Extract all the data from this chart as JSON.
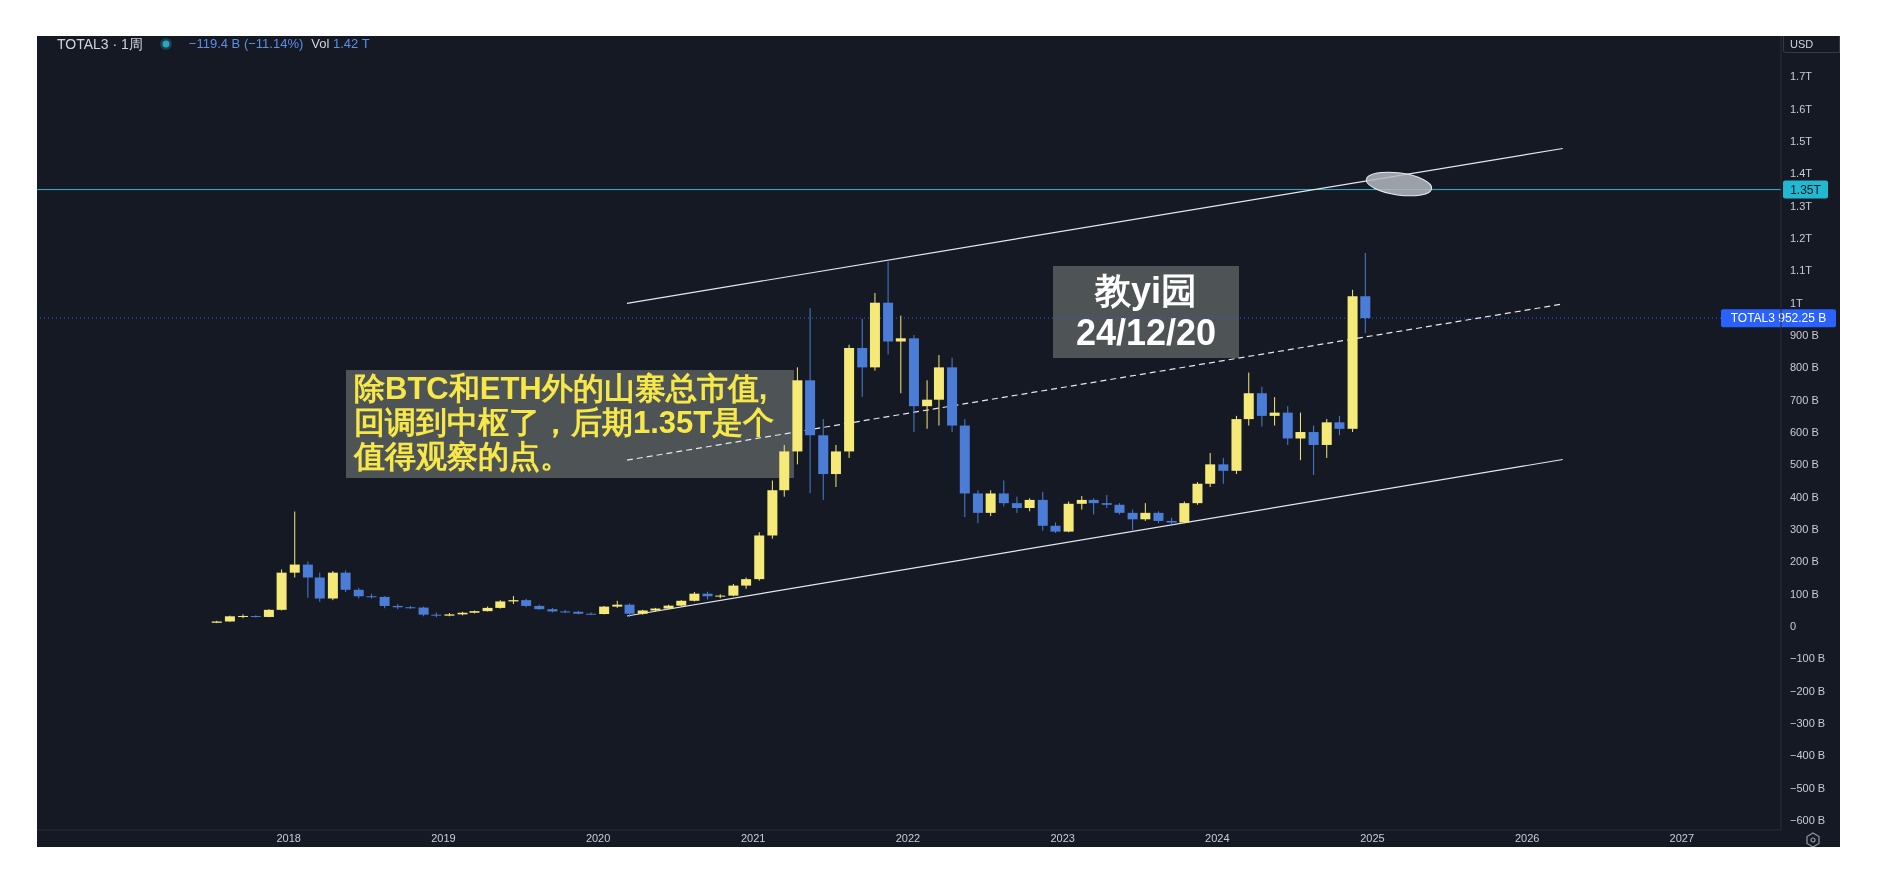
{
  "chart_data": {
    "type": "candlestick",
    "title": "TOTAL3 · 1周",
    "subtitle": "−119.4 B (−11.14%)",
    "ylabel": "USD",
    "x": [
      "2017-07-15",
      "2017-08-15",
      "2017-09-15",
      "2017-10-15",
      "2017-11-15",
      "2017-12-15",
      "2018-01-15",
      "2018-02-15",
      "2018-03-15",
      "2018-04-15",
      "2018-05-15",
      "2018-06-15",
      "2018-07-15",
      "2018-08-15",
      "2018-09-15",
      "2018-10-15",
      "2018-11-15",
      "2018-12-15",
      "2019-01-15",
      "2019-02-15",
      "2019-03-15",
      "2019-04-15",
      "2019-05-15",
      "2019-06-15",
      "2019-07-15",
      "2019-08-15",
      "2019-09-15",
      "2019-10-15",
      "2019-11-15",
      "2019-12-15",
      "2020-01-15",
      "2020-02-15",
      "2020-03-15",
      "2020-04-15",
      "2020-05-15",
      "2020-06-15",
      "2020-07-15",
      "2020-08-15",
      "2020-09-15",
      "2020-10-15",
      "2020-11-15",
      "2020-12-15",
      "2021-01-15",
      "2021-02-15",
      "2021-03-15",
      "2021-04-15",
      "2021-05-15",
      "2021-06-15",
      "2021-07-15",
      "2021-08-15",
      "2021-09-15",
      "2021-10-15",
      "2021-11-15",
      "2021-12-15",
      "2022-01-15",
      "2022-02-15",
      "2022-03-15",
      "2022-04-15",
      "2022-05-15",
      "2022-06-15",
      "2022-07-15",
      "2022-08-15",
      "2022-09-15",
      "2022-10-15",
      "2022-11-15",
      "2022-12-15",
      "2023-01-15",
      "2023-02-15",
      "2023-03-15",
      "2023-04-15",
      "2023-05-15",
      "2023-06-15",
      "2023-07-15",
      "2023-08-15",
      "2023-09-15",
      "2023-10-15",
      "2023-11-15",
      "2023-12-15",
      "2024-01-15",
      "2024-02-15",
      "2024-03-15",
      "2024-04-15",
      "2024-05-15",
      "2024-06-15",
      "2024-07-15",
      "2024-08-15",
      "2024-09-15",
      "2024-10-15",
      "2024-11-15",
      "2024-12-15"
    ],
    "ohlc": [
      [
        10000000000.0,
        16000000000.0,
        9000000000.0,
        14000000000.0
      ],
      [
        14000000000.0,
        32000000000.0,
        13000000000.0,
        30000000000.0
      ],
      [
        30000000000.0,
        36000000000.0,
        24000000000.0,
        31000000000.0
      ],
      [
        31000000000.0,
        33000000000.0,
        26000000000.0,
        28000000000.0
      ],
      [
        28000000000.0,
        52000000000.0,
        27000000000.0,
        50000000000.0
      ],
      [
        50000000000.0,
        175000000000.0,
        48000000000.0,
        165000000000.0
      ],
      [
        165000000000.0,
        354000000000.0,
        150000000000.0,
        190000000000.0
      ],
      [
        190000000000.0,
        200000000000.0,
        87000000000.0,
        150000000000.0
      ],
      [
        150000000000.0,
        165000000000.0,
        75000000000.0,
        85000000000.0
      ],
      [
        85000000000.0,
        170000000000.0,
        80000000000.0,
        165000000000.0
      ],
      [
        165000000000.0,
        172000000000.0,
        105000000000.0,
        112000000000.0
      ],
      [
        112000000000.0,
        118000000000.0,
        85000000000.0,
        92000000000.0
      ],
      [
        92000000000.0,
        100000000000.0,
        85000000000.0,
        90000000000.0
      ],
      [
        90000000000.0,
        92000000000.0,
        55000000000.0,
        62000000000.0
      ],
      [
        62000000000.0,
        68000000000.0,
        52000000000.0,
        58000000000.0
      ],
      [
        58000000000.0,
        62000000000.0,
        53000000000.0,
        57000000000.0
      ],
      [
        57000000000.0,
        60000000000.0,
        30000000000.0,
        35000000000.0
      ],
      [
        35000000000.0,
        42000000000.0,
        27000000000.0,
        32000000000.0
      ],
      [
        32000000000.0,
        40000000000.0,
        30000000000.0,
        36000000000.0
      ],
      [
        36000000000.0,
        44000000000.0,
        33000000000.0,
        41000000000.0
      ],
      [
        41000000000.0,
        48000000000.0,
        39000000000.0,
        46000000000.0
      ],
      [
        46000000000.0,
        60000000000.0,
        45000000000.0,
        56000000000.0
      ],
      [
        56000000000.0,
        80000000000.0,
        54000000000.0,
        76000000000.0
      ],
      [
        76000000000.0,
        93000000000.0,
        68000000000.0,
        80000000000.0
      ],
      [
        80000000000.0,
        84000000000.0,
        58000000000.0,
        62000000000.0
      ],
      [
        62000000000.0,
        66000000000.0,
        50000000000.0,
        52000000000.0
      ],
      [
        52000000000.0,
        56000000000.0,
        42000000000.0,
        45000000000.0
      ],
      [
        45000000000.0,
        50000000000.0,
        40000000000.0,
        44000000000.0
      ],
      [
        44000000000.0,
        47000000000.0,
        36000000000.0,
        38000000000.0
      ],
      [
        38000000000.0,
        42000000000.0,
        34000000000.0,
        37000000000.0
      ],
      [
        37000000000.0,
        62000000000.0,
        36000000000.0,
        60000000000.0
      ],
      [
        60000000000.0,
        78000000000.0,
        56000000000.0,
        66000000000.0
      ],
      [
        66000000000.0,
        70000000000.0,
        28000000000.0,
        38000000000.0
      ],
      [
        38000000000.0,
        50000000000.0,
        35000000000.0,
        48000000000.0
      ],
      [
        48000000000.0,
        56000000000.0,
        45000000000.0,
        54000000000.0
      ],
      [
        54000000000.0,
        66000000000.0,
        52000000000.0,
        63000000000.0
      ],
      [
        63000000000.0,
        80000000000.0,
        60000000000.0,
        78000000000.0
      ],
      [
        78000000000.0,
        105000000000.0,
        76000000000.0,
        100000000000.0
      ],
      [
        100000000000.0,
        106000000000.0,
        82000000000.0,
        92000000000.0
      ],
      [
        92000000000.0,
        98000000000.0,
        86000000000.0,
        94000000000.0
      ],
      [
        94000000000.0,
        130000000000.0,
        92000000000.0,
        125000000000.0
      ],
      [
        125000000000.0,
        150000000000.0,
        115000000000.0,
        145000000000.0
      ],
      [
        145000000000.0,
        290000000000.0,
        140000000000.0,
        280000000000.0
      ],
      [
        280000000000.0,
        450000000000.0,
        270000000000.0,
        420000000000.0
      ],
      [
        420000000000.0,
        560000000000.0,
        400000000000.0,
        540000000000.0
      ],
      [
        540000000000.0,
        800000000000.0,
        500000000000.0,
        760000000000.0
      ],
      [
        760000000000.0,
        983000000000.0,
        411000000000.0,
        590000000000.0
      ],
      [
        590000000000.0,
        640000000000.0,
        390000000000.0,
        470000000000.0
      ],
      [
        470000000000.0,
        560000000000.0,
        430000000000.0,
        540000000000.0
      ],
      [
        540000000000.0,
        870000000000.0,
        520000000000.0,
        860000000000.0
      ],
      [
        860000000000.0,
        950000000000.0,
        709000000000.0,
        800000000000.0
      ],
      [
        800000000000.0,
        1030000000000.0,
        790000000000.0,
        1000000000000.0
      ],
      [
        1000000000000.0,
        1127000000000.0,
        840000000000.0,
        880000000000.0
      ],
      [
        880000000000.0,
        960000000000.0,
        720000000000.0,
        890000000000.0
      ],
      [
        890000000000.0,
        900000000000.0,
        600000000000.0,
        680000000000.0
      ],
      [
        680000000000.0,
        760000000000.0,
        610000000000.0,
        700000000000.0
      ],
      [
        700000000000.0,
        838000000000.0,
        620000000000.0,
        800000000000.0
      ],
      [
        800000000000.0,
        830000000000.0,
        600000000000.0,
        620000000000.0
      ],
      [
        620000000000.0,
        640000000000.0,
        337000000000.0,
        410000000000.0
      ],
      [
        410000000000.0,
        420000000000.0,
        318000000000.0,
        350000000000.0
      ],
      [
        350000000000.0,
        420000000000.0,
        340000000000.0,
        410000000000.0
      ],
      [
        410000000000.0,
        450000000000.0,
        370000000000.0,
        380000000000.0
      ],
      [
        380000000000.0,
        400000000000.0,
        350000000000.0,
        365000000000.0
      ],
      [
        365000000000.0,
        395000000000.0,
        355000000000.0,
        390000000000.0
      ],
      [
        390000000000.0,
        415000000000.0,
        295000000000.0,
        310000000000.0
      ],
      [
        310000000000.0,
        320000000000.0,
        288000000000.0,
        292000000000.0
      ],
      [
        292000000000.0,
        385000000000.0,
        290000000000.0,
        378000000000.0
      ],
      [
        378000000000.0,
        402000000000.0,
        360000000000.0,
        390000000000.0
      ],
      [
        390000000000.0,
        395000000000.0,
        345000000000.0,
        380000000000.0
      ],
      [
        380000000000.0,
        405000000000.0,
        365000000000.0,
        375000000000.0
      ],
      [
        375000000000.0,
        380000000000.0,
        345000000000.0,
        350000000000.0
      ],
      [
        350000000000.0,
        360000000000.0,
        297000000000.0,
        330000000000.0
      ],
      [
        330000000000.0,
        380000000000.0,
        325000000000.0,
        350000000000.0
      ],
      [
        350000000000.0,
        355000000000.0,
        318000000000.0,
        325000000000.0
      ],
      [
        325000000000.0,
        335000000000.0,
        315000000000.0,
        320000000000.0
      ],
      [
        320000000000.0,
        385000000000.0,
        318000000000.0,
        380000000000.0
      ],
      [
        380000000000.0,
        445000000000.0,
        375000000000.0,
        440000000000.0
      ],
      [
        440000000000.0,
        535000000000.0,
        430000000000.0,
        500000000000.0
      ],
      [
        500000000000.0,
        520000000000.0,
        440000000000.0,
        480000000000.0
      ],
      [
        480000000000.0,
        650000000000.0,
        470000000000.0,
        640000000000.0
      ],
      [
        640000000000.0,
        784000000000.0,
        620000000000.0,
        720000000000.0
      ],
      [
        720000000000.0,
        740000000000.0,
        617000000000.0,
        650000000000.0
      ],
      [
        650000000000.0,
        708000000000.0,
        620000000000.0,
        660000000000.0
      ],
      [
        660000000000.0,
        680000000000.0,
        560000000000.0,
        580000000000.0
      ],
      [
        580000000000.0,
        660000000000.0,
        513000000000.0,
        600000000000.0
      ],
      [
        600000000000.0,
        620000000000.0,
        467000000000.0,
        560000000000.0
      ],
      [
        560000000000.0,
        640000000000.0,
        520000000000.0,
        630000000000.0
      ],
      [
        630000000000.0,
        650000000000.0,
        590000000000.0,
        610000000000.0
      ],
      [
        610000000000.0,
        1040000000000.0,
        600000000000.0,
        1020000000000.0
      ],
      [
        1020000000000.0,
        1154000000000.0,
        906000000000.0,
        952250000000.0
      ]
    ],
    "colors": [
      "#f5e978",
      "#f5e978",
      "#f5e978",
      "#4b7dd7",
      "#f5e978",
      "#f5e978",
      "#f5e978",
      "#4b7dd7",
      "#4b7dd7",
      "#f5e978",
      "#4b7dd7",
      "#4b7dd7",
      "#4b7dd7",
      "#4b7dd7",
      "#4b7dd7",
      "#4b7dd7",
      "#4b7dd7",
      "#4b7dd7",
      "#f5e978",
      "#f5e978",
      "#f5e978",
      "#f5e978",
      "#f5e978",
      "#f5e978",
      "#4b7dd7",
      "#4b7dd7",
      "#4b7dd7",
      "#4b7dd7",
      "#4b7dd7",
      "#4b7dd7",
      "#f5e978",
      "#f5e978",
      "#4b7dd7",
      "#f5e978",
      "#f5e978",
      "#f5e978",
      "#f5e978",
      "#f5e978",
      "#4b7dd7",
      "#f5e978",
      "#f5e978",
      "#f5e978",
      "#f5e978",
      "#f5e978",
      "#f5e978",
      "#f5e978",
      "#4b7dd7",
      "#4b7dd7",
      "#f5e978",
      "#f5e978",
      "#4b7dd7",
      "#f5e978",
      "#4b7dd7",
      "#f5e978",
      "#4b7dd7",
      "#f5e978",
      "#f5e978",
      "#4b7dd7",
      "#4b7dd7",
      "#4b7dd7",
      "#f5e978",
      "#4b7dd7",
      "#4b7dd7",
      "#f5e978",
      "#4b7dd7",
      "#4b7dd7",
      "#f5e978",
      "#f5e978",
      "#4b7dd7",
      "#4b7dd7",
      "#4b7dd7",
      "#4b7dd7",
      "#f5e978",
      "#4b7dd7",
      "#4b7dd7",
      "#f5e978",
      "#f5e978",
      "#f5e978",
      "#4b7dd7",
      "#f5e978",
      "#f5e978",
      "#4b7dd7",
      "#f5e978",
      "#4b7dd7",
      "#f5e978",
      "#4b7dd7",
      "#f5e978",
      "#4b7dd7",
      "#f5e978",
      "#4b7dd7"
    ],
    "series": [
      {
        "type": "line",
        "x": [
          "2020-03-09",
          "2026-03-26"
        ],
        "values": [
          998000000000.0,
          1477000000000.0
        ],
        "color": "#e6e8ee"
      },
      {
        "type": "line",
        "x": [
          "2020-03-09",
          "2026-03-26"
        ],
        "values": [
          513000000000.0,
          996000000000.0
        ],
        "color": "#e6e8ee",
        "line_style": "dashed"
      },
      {
        "type": "line",
        "x": [
          "2020-03-09",
          "2026-03-26"
        ],
        "values": [
          31000000000.0,
          515000000000.0
        ],
        "color": "#e6e8ee"
      }
    ],
    "xlim": [
      "2016-05-17",
      "2027-08-23"
    ],
    "xticks": [
      "2018",
      "2019",
      "2020",
      "2021",
      "2022",
      "2023",
      "2024",
      "2025",
      "2026",
      "2027"
    ],
    "ylim": [
      -631000000000.0,
      1825000000000.0
    ],
    "yticks": [
      {
        "value": 1700000000000.0,
        "label": "1.7T"
      },
      {
        "value": 1600000000000.0,
        "label": "1.6T"
      },
      {
        "value": 1500000000000.0,
        "label": "1.5T"
      },
      {
        "value": 1400000000000.0,
        "label": "1.4T"
      },
      {
        "value": 1300000000000.0,
        "label": "1.3T"
      },
      {
        "value": 1200000000000.0,
        "label": "1.2T"
      },
      {
        "value": 1100000000000.0,
        "label": "1.1T"
      },
      {
        "value": 1000000000000.0,
        "label": "1T"
      },
      {
        "value": 900000000000.0,
        "label": "900 B"
      },
      {
        "value": 800000000000.0,
        "label": "800 B"
      },
      {
        "value": 700000000000.0,
        "label": "700 B"
      },
      {
        "value": 600000000000.0,
        "label": "600 B"
      },
      {
        "value": 500000000000.0,
        "label": "500 B"
      },
      {
        "value": 400000000000.0,
        "label": "400 B"
      },
      {
        "value": 300000000000.0,
        "label": "300 B"
      },
      {
        "value": 200000000000.0,
        "label": "200 B"
      },
      {
        "value": 100000000000.0,
        "label": "100 B"
      },
      0,
      {
        "value": -100000000000.0,
        "label": "−100 B"
      },
      {
        "value": -200000000000.0,
        "label": "−200 B"
      },
      {
        "value": -300000000000.0,
        "label": "−300 B"
      },
      {
        "value": -400000000000.0,
        "label": "−400 B"
      },
      {
        "value": -500000000000.0,
        "label": "−500 B"
      },
      {
        "value": -600000000000.0,
        "label": "−600 B"
      }
    ],
    "ref_lines": [
      {
        "axis": "y",
        "value": 1350000000000.0,
        "label": "1.35T",
        "color": "#22b8cf"
      },
      {
        "axis": "y",
        "value": 952250000000.0,
        "label": "TOTAL3 952.25 B",
        "color": "#2962ff",
        "line_style": "dotted"
      }
    ],
    "annotations": [
      "Vol 1.42 T",
      "除BTC和ETH外的山寨总市值,回调到中枢了，后期1.35T是个值得观察的点。",
      "教yi园\n24/12/20"
    ]
  }
}
